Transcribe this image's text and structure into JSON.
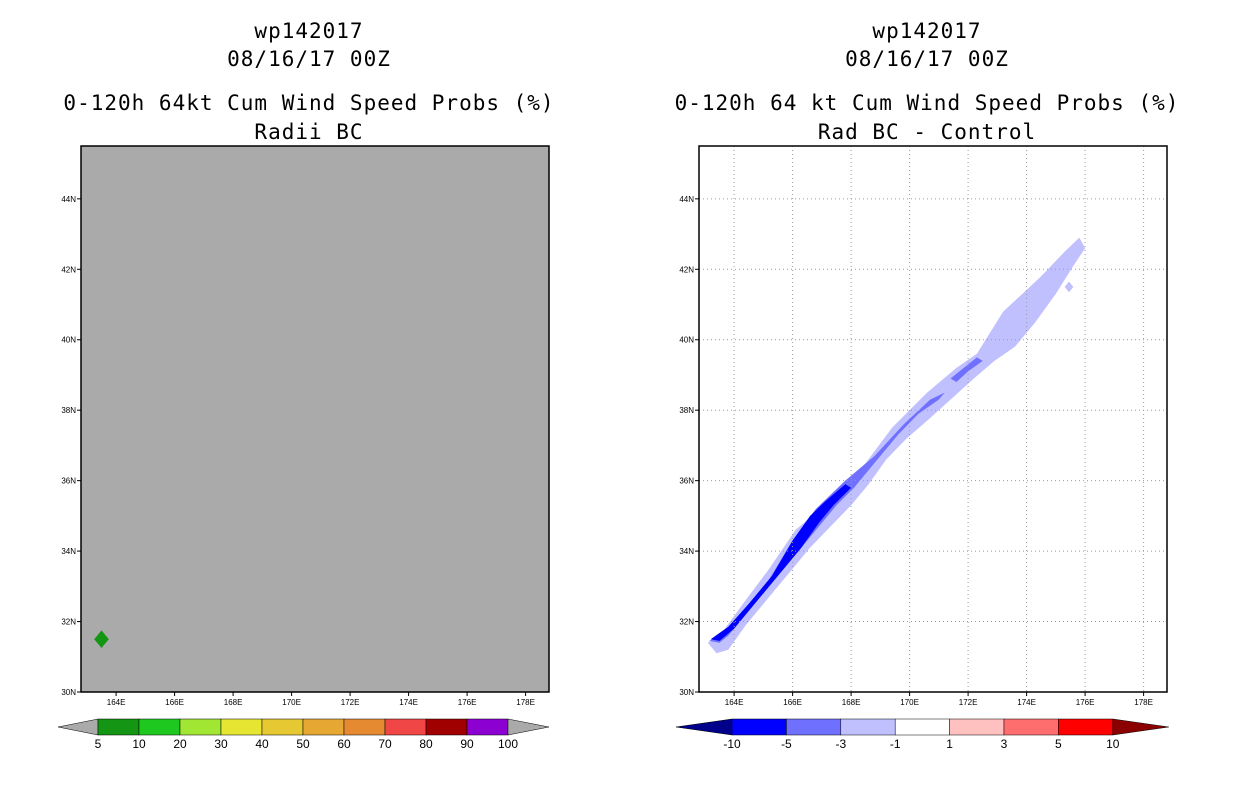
{
  "panels": [
    {
      "storm_id": "wp142017",
      "datetime": "08/16/17 00Z",
      "title": "0-120h 64kt Cum Wind Speed Probs (%)",
      "subtitle": "Radii BC",
      "colorbar": {
        "labels": [
          "5",
          "10",
          "20",
          "30",
          "40",
          "50",
          "60",
          "70",
          "80",
          "90",
          "100"
        ],
        "colors": [
          "#149614",
          "#1ec81e",
          "#a0e632",
          "#e6e632",
          "#e6c832",
          "#e6a832",
          "#e68a32",
          "#f04646",
          "#a00000",
          "#8c00d2"
        ]
      }
    },
    {
      "storm_id": "wp142017",
      "datetime": "08/16/17 00Z",
      "title": "0-120h 64 kt Cum Wind Speed Probs (%)",
      "subtitle": "Rad BC - Control",
      "colorbar": {
        "labels": [
          "-10",
          "-5",
          "-3",
          "-1",
          "1",
          "3",
          "5",
          "10"
        ],
        "colors": [
          "#0000ff",
          "#7070ff",
          "#c0c0ff",
          "#ffffff",
          "#ffc0c0",
          "#ff6e6e",
          "#ff0000"
        ],
        "end_low": "#00008b",
        "end_high": "#8b0000"
      }
    }
  ],
  "chart_data": [
    {
      "type": "heatmap",
      "title": "0-120h 64kt Cum Wind Speed Probs (%)",
      "subtitle": "Radii BC",
      "xlabel": "",
      "ylabel": "",
      "xlim": [
        162.8,
        178.8
      ],
      "ylim": [
        30,
        45.5
      ],
      "x_ticks": [
        "164E",
        "166E",
        "168E",
        "170E",
        "172E",
        "174E",
        "176E",
        "178E"
      ],
      "y_ticks": [
        "30N",
        "32N",
        "34N",
        "36N",
        "38N",
        "40N",
        "42N",
        "44N"
      ],
      "background_color": "#aaaaaa",
      "grid": false,
      "features": [
        {
          "level": "5-10",
          "color": "#149614",
          "polygon": [
            [
              163.5,
              31.75
            ],
            [
              163.75,
              31.5
            ],
            [
              163.5,
              31.25
            ],
            [
              163.25,
              31.5
            ]
          ]
        }
      ]
    },
    {
      "type": "heatmap",
      "title": "0-120h 64 kt Cum Wind Speed Probs (%)",
      "subtitle": "Rad BC - Control",
      "xlabel": "",
      "ylabel": "",
      "xlim": [
        162.8,
        178.8
      ],
      "ylim": [
        30,
        45.5
      ],
      "x_ticks": [
        "164E",
        "166E",
        "168E",
        "170E",
        "172E",
        "174E",
        "176E",
        "178E"
      ],
      "y_ticks": [
        "30N",
        "32N",
        "34N",
        "36N",
        "38N",
        "40N",
        "42N",
        "44N"
      ],
      "background_color": "#ffffff",
      "grid": true,
      "features": [
        {
          "level": "-3 to -1",
          "color": "#c0c0ff",
          "polygon": [
            [
              163.1,
              31.4
            ],
            [
              163.6,
              31.7
            ],
            [
              164.3,
              32.5
            ],
            [
              165.2,
              33.5
            ],
            [
              166.1,
              34.6
            ],
            [
              167.5,
              35.6
            ],
            [
              168.5,
              36.5
            ],
            [
              169.4,
              37.5
            ],
            [
              170.6,
              38.5
            ],
            [
              171.6,
              39.2
            ],
            [
              172.3,
              39.6
            ],
            [
              173.2,
              40.8
            ],
            [
              174.5,
              41.8
            ],
            [
              175.3,
              42.5
            ],
            [
              175.8,
              42.9
            ],
            [
              176.0,
              42.6
            ],
            [
              175.6,
              42.1
            ],
            [
              175.0,
              41.3
            ],
            [
              174.3,
              40.5
            ],
            [
              173.6,
              39.8
            ],
            [
              172.9,
              39.4
            ],
            [
              172.2,
              38.9
            ],
            [
              171.4,
              38.3
            ],
            [
              170.6,
              37.7
            ],
            [
              169.9,
              37.2
            ],
            [
              169.2,
              36.6
            ],
            [
              168.6,
              35.9
            ],
            [
              168.0,
              35.3
            ],
            [
              167.3,
              34.7
            ],
            [
              166.6,
              34.1
            ],
            [
              165.9,
              33.4
            ],
            [
              165.2,
              32.7
            ],
            [
              164.4,
              31.9
            ],
            [
              163.8,
              31.2
            ],
            [
              163.4,
              31.1
            ]
          ]
        },
        {
          "level": "-3 to -1",
          "color": "#c0c0ff",
          "polygon": [
            [
              175.3,
              41.5
            ],
            [
              175.45,
              41.65
            ],
            [
              175.6,
              41.5
            ],
            [
              175.45,
              41.35
            ]
          ]
        },
        {
          "level": "-5 to -3",
          "color": "#7070ff",
          "polygon": [
            [
              163.15,
              31.45
            ],
            [
              163.7,
              31.7
            ],
            [
              164.4,
              32.4
            ],
            [
              165.2,
              33.2
            ],
            [
              166.0,
              34.3
            ],
            [
              166.8,
              35.2
            ],
            [
              167.8,
              36.0
            ],
            [
              168.8,
              36.7
            ],
            [
              169.8,
              37.6
            ],
            [
              170.7,
              38.3
            ],
            [
              171.2,
              38.5
            ],
            [
              171.0,
              38.3
            ],
            [
              170.3,
              37.9
            ],
            [
              169.6,
              37.3
            ],
            [
              168.8,
              36.5
            ],
            [
              168.1,
              35.8
            ],
            [
              167.5,
              35.3
            ],
            [
              166.8,
              34.6
            ],
            [
              166.2,
              34.0
            ],
            [
              165.4,
              33.2
            ],
            [
              164.6,
              32.4
            ],
            [
              163.8,
              31.6
            ],
            [
              163.5,
              31.4
            ]
          ]
        },
        {
          "level": "-5 to -3",
          "color": "#7070ff",
          "polygon": [
            [
              171.4,
              38.9
            ],
            [
              172.3,
              39.5
            ],
            [
              172.5,
              39.4
            ],
            [
              172.0,
              39.1
            ],
            [
              171.6,
              38.8
            ]
          ]
        },
        {
          "level": "-10 to -5",
          "color": "#0000ff",
          "polygon": [
            [
              163.2,
              31.5
            ],
            [
              163.8,
              31.85
            ],
            [
              164.5,
              32.5
            ],
            [
              165.3,
              33.3
            ],
            [
              166.0,
              34.3
            ],
            [
              166.6,
              35.0
            ],
            [
              167.1,
              35.4
            ],
            [
              167.8,
              35.9
            ],
            [
              168.0,
              35.8
            ],
            [
              167.4,
              35.3
            ],
            [
              166.9,
              34.8
            ],
            [
              166.3,
              34.1
            ],
            [
              165.6,
              33.4
            ],
            [
              164.8,
              32.6
            ],
            [
              164.0,
              31.8
            ],
            [
              163.5,
              31.45
            ]
          ]
        }
      ]
    }
  ]
}
